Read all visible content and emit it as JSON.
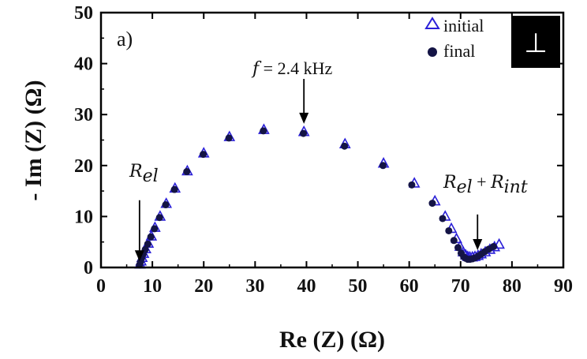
{
  "chart_data": {
    "type": "scatter",
    "panel_label": "a)",
    "orientation_badge": "⊥",
    "xlabel": "Re (Z) (Ω)",
    "ylabel": "- Im (Z) (Ω)",
    "xlim": [
      0,
      90
    ],
    "ylim": [
      0,
      50
    ],
    "x_ticks": [
      0,
      10,
      20,
      30,
      40,
      50,
      60,
      70,
      80,
      90
    ],
    "y_ticks": [
      0,
      10,
      20,
      30,
      40,
      50
    ],
    "legend_position": "top-right",
    "series": [
      {
        "name": "initial",
        "marker": "open-triangle",
        "color": "#2a1fd8",
        "x": [
          7.6,
          7.8,
          8.0,
          8.3,
          8.7,
          9.2,
          9.8,
          10.5,
          11.5,
          12.7,
          14.4,
          16.8,
          20.0,
          25.0,
          31.7,
          39.5,
          47.5,
          55.0,
          61.0,
          65.0,
          67.0,
          68.2,
          69.2,
          69.9,
          70.5,
          71.0,
          71.4,
          71.8,
          72.3,
          72.8,
          73.4,
          74.0,
          74.8,
          75.7,
          76.6,
          77.5
        ],
        "y": [
          0.6,
          1.2,
          1.9,
          2.7,
          3.6,
          4.7,
          6.1,
          7.8,
          10.0,
          12.5,
          15.5,
          18.9,
          22.4,
          25.6,
          27.0,
          26.6,
          24.2,
          20.4,
          16.5,
          13.0,
          10.0,
          7.6,
          5.6,
          4.1,
          3.0,
          2.4,
          2.1,
          2.0,
          2.0,
          2.1,
          2.3,
          2.6,
          3.0,
          3.5,
          4.0,
          4.5
        ]
      },
      {
        "name": "final",
        "marker": "filled-circle",
        "color": "#141445",
        "x": [
          7.5,
          7.7,
          7.9,
          8.2,
          8.6,
          9.1,
          9.7,
          10.4,
          11.4,
          12.6,
          14.3,
          16.7,
          19.9,
          24.9,
          31.6,
          39.4,
          47.4,
          54.9,
          60.5,
          64.5,
          66.5,
          67.7,
          68.7,
          69.5,
          70.1,
          70.6,
          71.0,
          71.4,
          71.8,
          72.3,
          72.8,
          73.4,
          74.0,
          74.7,
          75.5,
          76.4
        ],
        "y": [
          0.5,
          1.1,
          1.8,
          2.6,
          3.5,
          4.6,
          6.0,
          7.6,
          9.8,
          12.3,
          15.3,
          18.8,
          22.2,
          25.4,
          26.8,
          26.3,
          23.8,
          20.0,
          16.2,
          12.6,
          9.6,
          7.2,
          5.3,
          3.9,
          2.8,
          2.1,
          1.8,
          1.6,
          1.6,
          1.7,
          1.9,
          2.2,
          2.6,
          3.1,
          3.6,
          4.1
        ]
      }
    ],
    "annotations": [
      {
        "id": "rel",
        "text_base": "R",
        "text_sub": "el",
        "arrow_x": 7.5,
        "arrow_y_top": 13.2,
        "arrow_y_bottom": 1.2
      },
      {
        "id": "freq",
        "text_italic": "f",
        "text_rest": " = 2.4 kHz",
        "arrow_x": 39.5,
        "arrow_y_top": 37.0,
        "arrow_y_bottom": 28.2
      },
      {
        "id": "relint",
        "text_base1": "R",
        "text_sub1": "el",
        "text_plus": " + ",
        "text_base2": "R",
        "text_sub2": "int",
        "arrow_x": 73.3,
        "arrow_y_top": 10.4,
        "arrow_y_bottom": 3.4
      }
    ]
  }
}
